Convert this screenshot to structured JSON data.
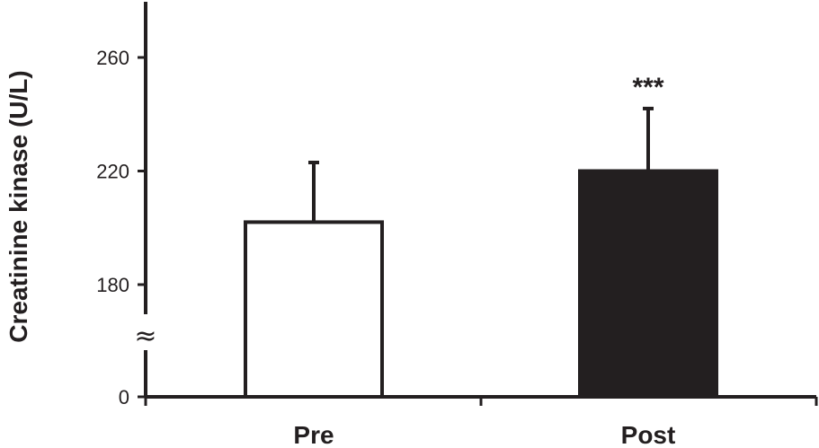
{
  "chart_data": {
    "type": "bar",
    "ylabel": "Creatinine kinase (U/L)",
    "categories": [
      "Pre",
      "Post"
    ],
    "values": [
      202,
      220
    ],
    "error_upper": [
      223,
      242
    ],
    "annotations": [
      "",
      "***"
    ],
    "bar_fill": [
      "#ffffff",
      "#231f20"
    ],
    "bar_stroke": "#231f20",
    "y_ticks": [
      {
        "value": 0,
        "label": "0"
      },
      {
        "value": 180,
        "label": "180"
      },
      {
        "value": 220,
        "label": "220"
      },
      {
        "value": 260,
        "label": "260"
      }
    ],
    "y_axis_break": {
      "between": [
        0,
        180
      ],
      "symbol": "≈"
    },
    "ylim": [
      180,
      270
    ],
    "grid": false,
    "legend": "none"
  }
}
